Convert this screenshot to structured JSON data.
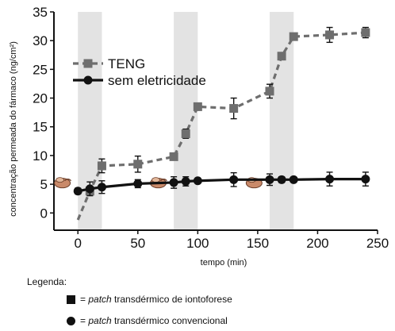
{
  "chart_data": {
    "type": "line",
    "xlabel": "tempo (min)",
    "ylabel": "concentração permeada do fármaco (ng/cm²)",
    "xlim": [
      -20,
      250
    ],
    "ylim": [
      -3,
      35
    ],
    "xticks": [
      0,
      50,
      100,
      150,
      200,
      250
    ],
    "yticks": [
      0,
      5,
      10,
      15,
      20,
      25,
      30,
      35
    ],
    "shaded_intervals": [
      [
        0,
        20
      ],
      [
        80,
        100
      ],
      [
        160,
        180
      ]
    ],
    "iontophoresis_marks_x": [
      -13,
      67,
      147
    ],
    "series": [
      {
        "name": "TENG",
        "style": "dashed",
        "marker": "square",
        "color": "#6e6e6e",
        "x": [
          0,
          10,
          20,
          50,
          80,
          90,
          100,
          130,
          160,
          170,
          180,
          210,
          240
        ],
        "y": [
          -1.2,
          3.8,
          8.2,
          8.5,
          9.8,
          13.8,
          18.5,
          18.2,
          21.2,
          27.3,
          30.7,
          31.0,
          31.4
        ],
        "err": [
          0,
          0.6,
          1.2,
          1.4,
          0.5,
          0.8,
          0.5,
          1.8,
          1.2,
          0.6,
          0.5,
          1.3,
          0.9
        ]
      },
      {
        "name": "sem eletricidade",
        "style": "solid",
        "marker": "circle",
        "color": "#111111",
        "x": [
          0,
          10,
          20,
          50,
          80,
          90,
          100,
          130,
          160,
          170,
          180,
          210,
          240
        ],
        "y": [
          3.8,
          4.2,
          4.5,
          5.1,
          5.3,
          5.5,
          5.6,
          5.8,
          5.8,
          5.8,
          5.8,
          5.9,
          5.9
        ],
        "err": [
          0.5,
          1.2,
          1.1,
          0.7,
          1.0,
          0.8,
          0.4,
          1.2,
          1.0,
          0.5,
          0.4,
          1.2,
          1.2
        ]
      }
    ],
    "legend_position": "upper-left"
  },
  "caption": {
    "title": "Legenda:",
    "items": [
      {
        "symbol": "square",
        "prefix": "= ",
        "italic": "patch",
        "suffix": " transdérmico de iontoforese"
      },
      {
        "symbol": "circle",
        "prefix": "= ",
        "italic": "patch",
        "suffix": " transdérmico convencional"
      }
    ]
  }
}
